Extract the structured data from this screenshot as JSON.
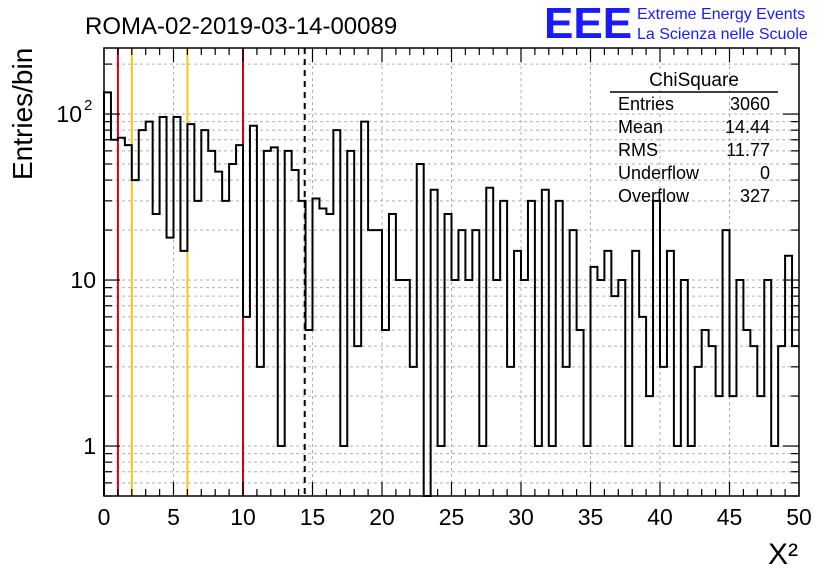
{
  "header": {
    "run_title": "ROMA-02-2019-03-14-00089",
    "logo_text": "EEE",
    "logo_line1": "Extreme Energy Events",
    "logo_line2": "La Scienza nelle Scuole"
  },
  "colors": {
    "hist_line": "#000000",
    "grid": "#b0b0b0",
    "red_marker": "#d0021b",
    "yellow_marker": "#f5c518",
    "mean_marker": "#000000",
    "logo_blue": "#1a1aff"
  },
  "stats": {
    "title": "ChiSquare",
    "rows": [
      {
        "label": "Entries",
        "value": "3060"
      },
      {
        "label": "Mean",
        "value": "14.44"
      },
      {
        "label": "RMS",
        "value": "11.77"
      },
      {
        "label": "Underflow",
        "value": "0"
      },
      {
        "label": "Overflow",
        "value": "327"
      }
    ]
  },
  "chart_data": {
    "type": "bar",
    "subtype": "histogram-step",
    "ylabel": "Entries/bin",
    "xlabel": "X²",
    "xlim": [
      0,
      50
    ],
    "ylim": [
      0.5,
      250
    ],
    "yscale": "log",
    "grid": true,
    "bin_width": 0.5,
    "x_ticks": [
      "0",
      "5",
      "10",
      "15",
      "20",
      "25",
      "30",
      "35",
      "40",
      "45",
      "50"
    ],
    "y_ticks": [
      {
        "value": 1,
        "label": "1"
      },
      {
        "value": 10,
        "label": "10"
      },
      {
        "value": 100,
        "label": "10",
        "sup": "2"
      }
    ],
    "values": [
      135,
      70,
      72,
      65,
      40,
      80,
      90,
      25,
      96,
      18,
      96,
      15,
      87,
      30,
      80,
      60,
      45,
      30,
      50,
      65,
      6,
      85,
      3,
      60,
      63,
      1,
      60,
      46,
      30,
      5,
      31,
      27,
      25,
      80,
      1,
      60,
      4,
      90,
      20,
      20,
      5,
      25,
      10,
      10,
      3,
      50,
      0,
      35,
      1,
      25,
      10,
      20,
      10,
      20,
      1,
      36,
      10,
      30,
      3,
      15,
      10,
      30,
      1,
      35,
      1,
      30,
      3,
      20,
      5,
      1,
      12,
      10,
      15,
      8,
      10,
      1,
      15,
      6,
      2,
      30,
      3,
      15,
      1,
      10,
      1,
      3,
      5,
      4,
      2,
      20,
      2,
      10,
      5,
      4,
      2,
      10,
      1,
      4,
      14,
      4
    ],
    "vertical_markers": [
      {
        "x": 1,
        "color": "red"
      },
      {
        "x": 2,
        "color": "yellow"
      },
      {
        "x": 6,
        "color": "yellow"
      },
      {
        "x": 10,
        "color": "red"
      },
      {
        "x": 14.44,
        "color": "black",
        "style": "dashed"
      }
    ]
  }
}
